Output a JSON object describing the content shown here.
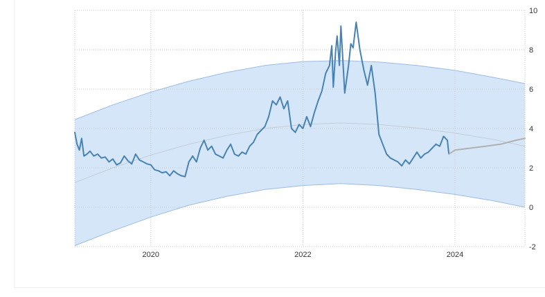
{
  "chart_data": {
    "type": "line",
    "title": "",
    "xlabel": "",
    "ylabel": "",
    "x_ticks": [
      "2020",
      "2022",
      "2024"
    ],
    "y_ticks": [
      "10",
      "8",
      "6",
      "4",
      "2",
      "0",
      "-2"
    ],
    "xlim": [
      2019.0,
      2024.92
    ],
    "ylim": [
      -2,
      10
    ],
    "grid": true,
    "legend": "none",
    "colors": {
      "actual": "#4682b4",
      "forecast": "#b0b0b0",
      "band_fill": "#d6e6f9",
      "band_edge": "#9bbbe4",
      "trend": "#c4ccd8",
      "grid": "#c8c8c8"
    },
    "band": {
      "x": [
        2019.0,
        2019.5,
        2020.0,
        2020.5,
        2021.0,
        2021.5,
        2022.0,
        2022.5,
        2023.0,
        2023.5,
        2024.0,
        2024.5,
        2024.92
      ],
      "upper": [
        4.45,
        5.2,
        5.85,
        6.4,
        6.85,
        7.2,
        7.4,
        7.45,
        7.38,
        7.2,
        6.95,
        6.6,
        6.28
      ],
      "trend": [
        1.25,
        2.0,
        2.65,
        3.2,
        3.65,
        4.0,
        4.2,
        4.28,
        4.2,
        4.02,
        3.76,
        3.45,
        3.1
      ],
      "lower": [
        -1.95,
        -1.2,
        -0.5,
        0.1,
        0.55,
        0.9,
        1.1,
        1.2,
        1.1,
        0.9,
        0.65,
        0.33,
        0.0
      ]
    },
    "series": [
      {
        "x": [
          2019.0,
          2019.03,
          2019.06,
          2019.09,
          2019.12,
          2019.16,
          2019.2,
          2019.25,
          2019.3,
          2019.35,
          2019.4,
          2019.45,
          2019.5,
          2019.55,
          2019.6,
          2019.65,
          2019.7,
          2019.75,
          2019.8,
          2019.85,
          2019.9,
          2019.95,
          2020.0,
          2020.05,
          2020.1,
          2020.15,
          2020.2,
          2020.25,
          2020.3,
          2020.35,
          2020.4,
          2020.45,
          2020.5,
          2020.55,
          2020.6,
          2020.65,
          2020.7,
          2020.75,
          2020.8,
          2020.85,
          2020.9,
          2020.95,
          2021.0,
          2021.05,
          2021.1,
          2021.15,
          2021.2,
          2021.25,
          2021.3,
          2021.35,
          2021.4,
          2021.45,
          2021.5,
          2021.55,
          2021.6,
          2021.65,
          2021.7,
          2021.75,
          2021.8,
          2021.85,
          2021.9,
          2021.95,
          2022.0,
          2022.05,
          2022.1,
          2022.15,
          2022.2,
          2022.25,
          2022.3,
          2022.35,
          2022.38,
          2022.4,
          2022.43,
          2022.45,
          2022.48,
          2022.5,
          2022.55,
          2022.6,
          2022.63,
          2022.66,
          2022.7,
          2022.75,
          2022.8,
          2022.85,
          2022.9,
          2022.95,
          2023.0,
          2023.05,
          2023.1,
          2023.15,
          2023.2,
          2023.25,
          2023.3,
          2023.35,
          2023.4,
          2023.45,
          2023.5,
          2023.55,
          2023.6,
          2023.65,
          2023.7,
          2023.75,
          2023.8,
          2023.85,
          2023.9,
          2023.92
        ],
        "y": [
          3.8,
          3.2,
          2.9,
          3.5,
          2.6,
          2.7,
          2.85,
          2.6,
          2.7,
          2.5,
          2.55,
          2.3,
          2.45,
          2.15,
          2.25,
          2.6,
          2.35,
          2.2,
          2.7,
          2.4,
          2.3,
          2.2,
          2.15,
          1.9,
          1.85,
          1.75,
          1.8,
          1.6,
          1.85,
          1.7,
          1.6,
          1.55,
          2.3,
          2.6,
          2.3,
          3.0,
          3.4,
          2.9,
          3.1,
          2.7,
          2.6,
          2.5,
          2.9,
          3.2,
          2.7,
          2.6,
          2.8,
          2.7,
          3.1,
          3.3,
          3.7,
          3.9,
          4.1,
          4.6,
          5.4,
          5.2,
          5.6,
          5.0,
          5.4,
          4.0,
          3.8,
          4.2,
          4.0,
          4.6,
          4.1,
          4.8,
          5.4,
          5.9,
          6.8,
          7.2,
          8.2,
          6.1,
          7.9,
          8.7,
          7.2,
          9.2,
          5.8,
          7.2,
          8.3,
          8.1,
          9.4,
          8.0,
          7.0,
          6.2,
          7.2,
          5.8,
          3.7,
          3.2,
          2.7,
          2.5,
          2.4,
          2.3,
          2.1,
          2.4,
          2.2,
          2.5,
          2.8,
          2.5,
          2.7,
          2.8,
          3.0,
          3.2,
          3.1,
          3.6,
          3.4,
          2.7
        ],
        "color": "#4682b4"
      },
      {
        "x": [
          2023.92,
          2024.0,
          2024.1,
          2024.2,
          2024.3,
          2024.4,
          2024.5,
          2024.6,
          2024.7,
          2024.8,
          2024.92
        ],
        "y": [
          2.7,
          2.9,
          2.95,
          3.0,
          3.05,
          3.1,
          3.15,
          3.2,
          3.3,
          3.4,
          3.5
        ],
        "color": "#b0b0b0"
      }
    ]
  }
}
